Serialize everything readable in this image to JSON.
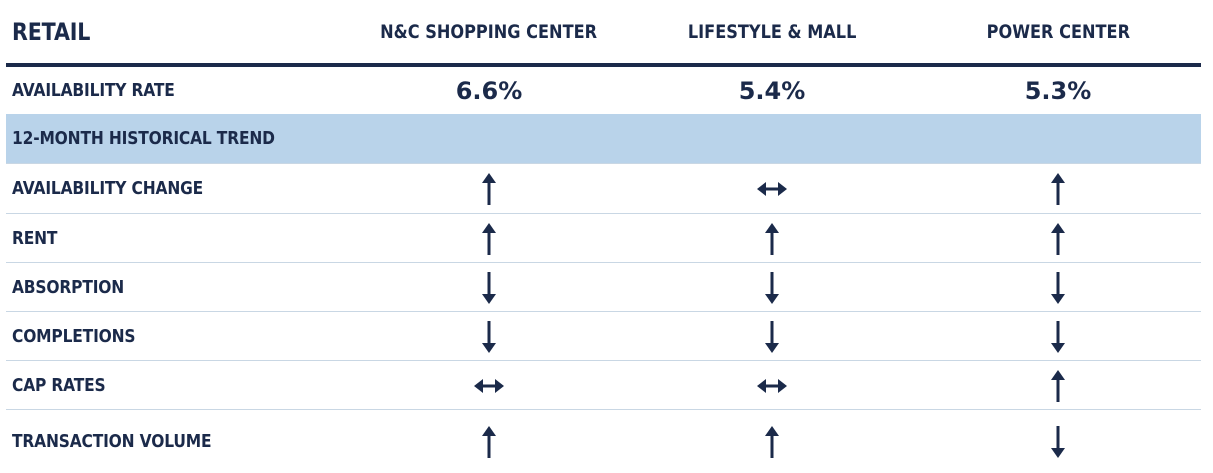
{
  "table": {
    "title": "RETAIL",
    "columns": [
      "N&C SHOPPING CENTER",
      "LIFESTYLE & MALL",
      "POWER CENTER"
    ],
    "availability_rate": {
      "label": "AVAILABILITY RATE",
      "values": [
        "6.6%",
        "5.4%",
        "5.3%"
      ]
    },
    "section_label": "12-MONTH HISTORICAL TREND",
    "rows": [
      {
        "label": "AVAILABILITY CHANGE",
        "trends": [
          "up",
          "flat",
          "up"
        ]
      },
      {
        "label": "RENT",
        "trends": [
          "up",
          "up",
          "up"
        ]
      },
      {
        "label": "ABSORPTION",
        "trends": [
          "down",
          "down",
          "down"
        ]
      },
      {
        "label": "COMPLETIONS",
        "trends": [
          "down",
          "down",
          "down"
        ]
      },
      {
        "label": "CAP RATES",
        "trends": [
          "flat",
          "flat",
          "up"
        ]
      },
      {
        "label": "TRANSACTION VOLUME",
        "trends": [
          "up",
          "up",
          "down"
        ]
      }
    ]
  },
  "colors": {
    "text": "#1b2a4a",
    "band": "#b9d3ea",
    "rule": "#1b2a4a",
    "divider": "#c9d7e4"
  },
  "icons": {
    "up": "arrow-up-icon",
    "down": "arrow-down-icon",
    "flat": "arrow-left-right-icon"
  }
}
